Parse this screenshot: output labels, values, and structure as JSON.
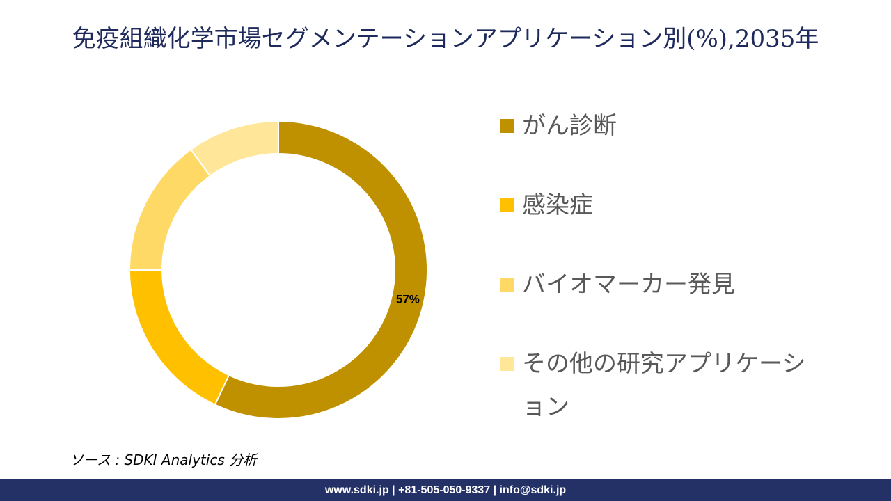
{
  "title": "免疫組織化学市場セグメンテーションアプリケーション別(%),2035年",
  "chart_data": {
    "type": "pie",
    "donut": true,
    "categories": [
      "がん診断",
      "感染症",
      "バイオマーカー発見",
      "その他の研究アプリケーション"
    ],
    "values": [
      57,
      18,
      15,
      10
    ],
    "data_labels": [
      "57%",
      "",
      "",
      ""
    ],
    "colors": [
      "#BF9000",
      "#FFC000",
      "#FFD966",
      "#FFE699"
    ],
    "legend_position": "right"
  },
  "source": "ソース : SDKI Analytics 分析",
  "footer": "www.sdki.jp | +81-505-050-9337 | info@sdki.jp"
}
